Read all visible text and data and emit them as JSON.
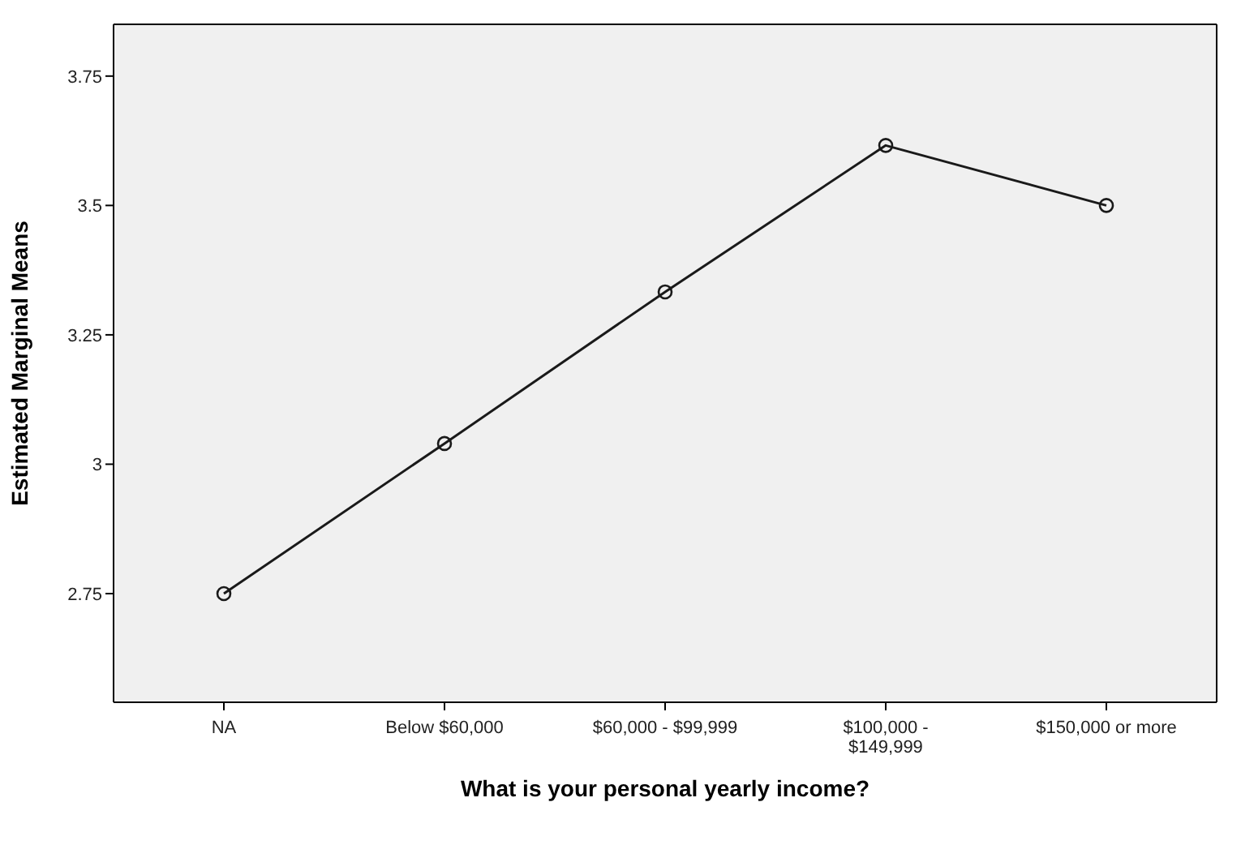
{
  "chart_data": {
    "type": "line",
    "xlabel": "What is your personal yearly income?",
    "ylabel": "Estimated Marginal Means",
    "categories": [
      "NA",
      "Below $60,000",
      "$60,000 - $99,999",
      "$100,000 - $149,999",
      "$150,000 or more"
    ],
    "series": [
      {
        "color": "#1a1a1a",
        "values": [
          2.75,
          3.04,
          3.333,
          3.616,
          3.5
        ]
      }
    ],
    "ylim": [
      2.54,
      3.85
    ],
    "yticks": [
      2.75,
      3,
      3.25,
      3.5,
      3.75
    ],
    "grid": false,
    "legend": false,
    "marker": "circle",
    "line_style": "solid"
  }
}
